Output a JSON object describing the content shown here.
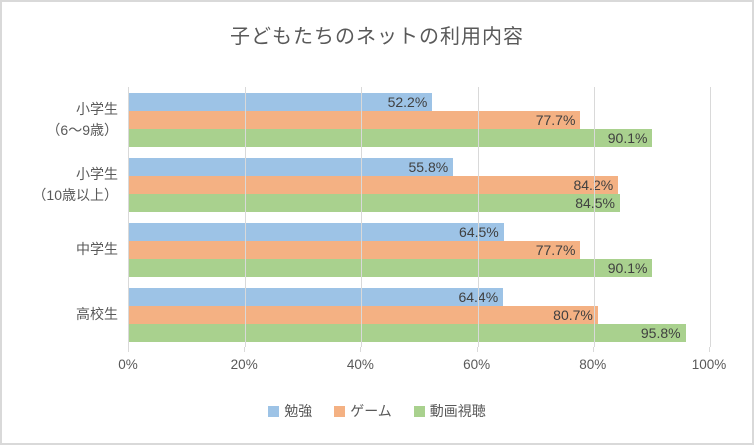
{
  "chart_data": {
    "type": "bar",
    "orientation": "horizontal",
    "title": "子どもたちのネットの利用内容",
    "categories": [
      "小学生\n（6〜9歳）",
      "小学生\n（10歳以上）",
      "中学生",
      "高校生"
    ],
    "series": [
      {
        "name": "勉強",
        "color": "#9dc3e6",
        "values": [
          52.2,
          55.8,
          64.5,
          64.4
        ]
      },
      {
        "name": "ゲーム",
        "color": "#f4b183",
        "values": [
          77.7,
          84.2,
          77.7,
          80.7
        ]
      },
      {
        "name": "動画視聴",
        "color": "#a9d18e",
        "values": [
          90.1,
          84.5,
          90.1,
          95.8
        ]
      }
    ],
    "value_suffix": "%",
    "xlim": [
      0,
      100
    ],
    "x_ticks": [
      {
        "value": 0,
        "label": "0%"
      },
      {
        "value": 20,
        "label": "20%"
      },
      {
        "value": 40,
        "label": "40%"
      },
      {
        "value": 60,
        "label": "60%"
      },
      {
        "value": 80,
        "label": "80%"
      },
      {
        "value": 100,
        "label": "100%"
      }
    ],
    "grid": true,
    "legend_position": "bottom",
    "colors": {
      "title_text": "#595959",
      "axis_text": "#595959",
      "data_label_text": "#404040",
      "gridline": "#d9d9d9",
      "chart_border": "#d9d9d9",
      "background": "#ffffff"
    }
  }
}
